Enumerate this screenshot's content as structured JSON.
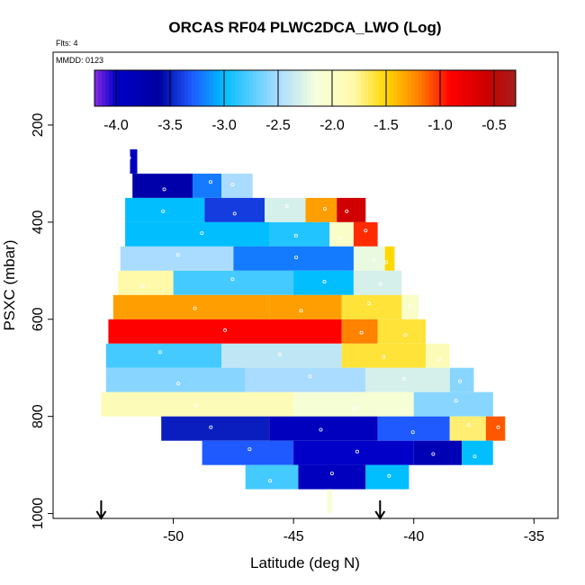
{
  "chart_data": {
    "type": "heatmap",
    "title": "ORCAS RF04 PLWC2DCA_LWO (Log)",
    "annotations": {
      "flights": "Flts: 4",
      "date": "MMDD: 0123"
    },
    "xlabel": "Latitude (deg N)",
    "ylabel": "PSXC (mbar)",
    "xlim": [
      -55,
      -34
    ],
    "ylim": [
      1010,
      50
    ],
    "y_inverted": true,
    "x_ticks": [
      -50,
      -45,
      -40,
      -35
    ],
    "x_tick_labels": [
      "-50",
      "-45",
      "-40",
      "-35"
    ],
    "y_ticks": [
      200,
      400,
      600,
      800,
      1000
    ],
    "y_tick_labels": [
      "200",
      "400",
      "600",
      "800",
      "1000"
    ],
    "colorbar": {
      "range": [
        -4.2,
        -0.3
      ],
      "ticks": [
        -4.0,
        -3.5,
        -3.0,
        -2.5,
        -2.0,
        -1.5,
        -1.0,
        -0.5
      ],
      "tick_labels": [
        "-4.0",
        "-3.5",
        "-3.0",
        "-2.5",
        "-2.0",
        "-1.5",
        "-1.0",
        "-0.5"
      ],
      "placement": "top, inside plot"
    },
    "arrows_lat": [
      -53,
      -41.4
    ],
    "rows": [
      {
        "p": 275,
        "segments": [
          [
            -51.8,
            -51.5,
            -3.9
          ]
        ]
      },
      {
        "p": 325,
        "segments": [
          [
            -51.7,
            -49.2,
            -3.7
          ],
          [
            -49.2,
            -48.0,
            -3.2
          ],
          [
            -48.0,
            -46.7,
            -2.5
          ]
        ]
      },
      {
        "p": 375,
        "segments": [
          [
            -52.0,
            -48.7,
            -3.0
          ],
          [
            -48.7,
            -46.2,
            -3.4
          ],
          [
            -46.2,
            -44.5,
            -2.3
          ],
          [
            -44.5,
            -43.2,
            -1.3
          ],
          [
            -43.2,
            -42.0,
            -0.6
          ]
        ]
      },
      {
        "p": 425,
        "segments": [
          [
            -52.0,
            -46.0,
            -3.0
          ],
          [
            -46.0,
            -43.5,
            -2.9
          ],
          [
            -43.5,
            -42.5,
            -2.0
          ],
          [
            -42.5,
            -41.5,
            -1.0
          ]
        ]
      },
      {
        "p": 475,
        "segments": [
          [
            -52.2,
            -47.5,
            -2.5
          ],
          [
            -47.5,
            -42.5,
            -3.2
          ],
          [
            -42.5,
            -41.2,
            -2.2
          ],
          [
            -41.2,
            -40.8,
            -1.5
          ]
        ]
      },
      {
        "p": 525,
        "segments": [
          [
            -52.3,
            -50.0,
            -1.8
          ],
          [
            -50.0,
            -45.0,
            -2.8
          ],
          [
            -45.0,
            -42.5,
            -3.0
          ],
          [
            -42.5,
            -40.5,
            -2.3
          ]
        ]
      },
      {
        "p": 575,
        "segments": [
          [
            -52.5,
            -46.0,
            -1.3
          ],
          [
            -46.0,
            -43.0,
            -1.3
          ],
          [
            -43.0,
            -40.5,
            -1.6
          ],
          [
            -40.5,
            -39.8,
            -2.0
          ]
        ]
      },
      {
        "p": 625,
        "segments": [
          [
            -52.7,
            -43.0,
            -0.9
          ],
          [
            -43.0,
            -41.5,
            -1.2
          ],
          [
            -41.5,
            -39.5,
            -1.6
          ]
        ]
      },
      {
        "p": 675,
        "segments": [
          [
            -52.8,
            -48.0,
            -2.8
          ],
          [
            -48.0,
            -43.0,
            -2.4
          ],
          [
            -43.0,
            -39.5,
            -1.6
          ],
          [
            -39.5,
            -38.5,
            -1.9
          ]
        ]
      },
      {
        "p": 725,
        "segments": [
          [
            -52.8,
            -47.0,
            -2.6
          ],
          [
            -47.0,
            -42.0,
            -2.5
          ],
          [
            -42.0,
            -38.5,
            -2.3
          ],
          [
            -38.5,
            -37.5,
            -2.6
          ]
        ]
      },
      {
        "p": 775,
        "segments": [
          [
            -53.0,
            -45.0,
            -1.9
          ],
          [
            -45.0,
            -40.0,
            -2.1
          ],
          [
            -40.0,
            -36.7,
            -2.6
          ]
        ]
      },
      {
        "p": 825,
        "segments": [
          [
            -50.5,
            -46.0,
            -3.5
          ],
          [
            -46.0,
            -41.5,
            -3.9
          ],
          [
            -41.5,
            -38.5,
            -3.3
          ],
          [
            -38.5,
            -37.0,
            -1.7
          ],
          [
            -37.0,
            -36.2,
            -1.1
          ]
        ]
      },
      {
        "p": 875,
        "segments": [
          [
            -48.8,
            -45.0,
            -3.3
          ],
          [
            -45.0,
            -40.0,
            -4.0
          ],
          [
            -40.0,
            -38.0,
            -3.8
          ],
          [
            -38.0,
            -36.7,
            -3.0
          ]
        ]
      },
      {
        "p": 925,
        "segments": [
          [
            -47.0,
            -44.8,
            -2.8
          ],
          [
            -44.8,
            -42.0,
            -3.9
          ],
          [
            -42.0,
            -40.2,
            -3.0
          ]
        ]
      },
      {
        "p": 975,
        "segments": [
          [
            -43.6,
            -43.4,
            -2.1
          ]
        ]
      }
    ]
  }
}
